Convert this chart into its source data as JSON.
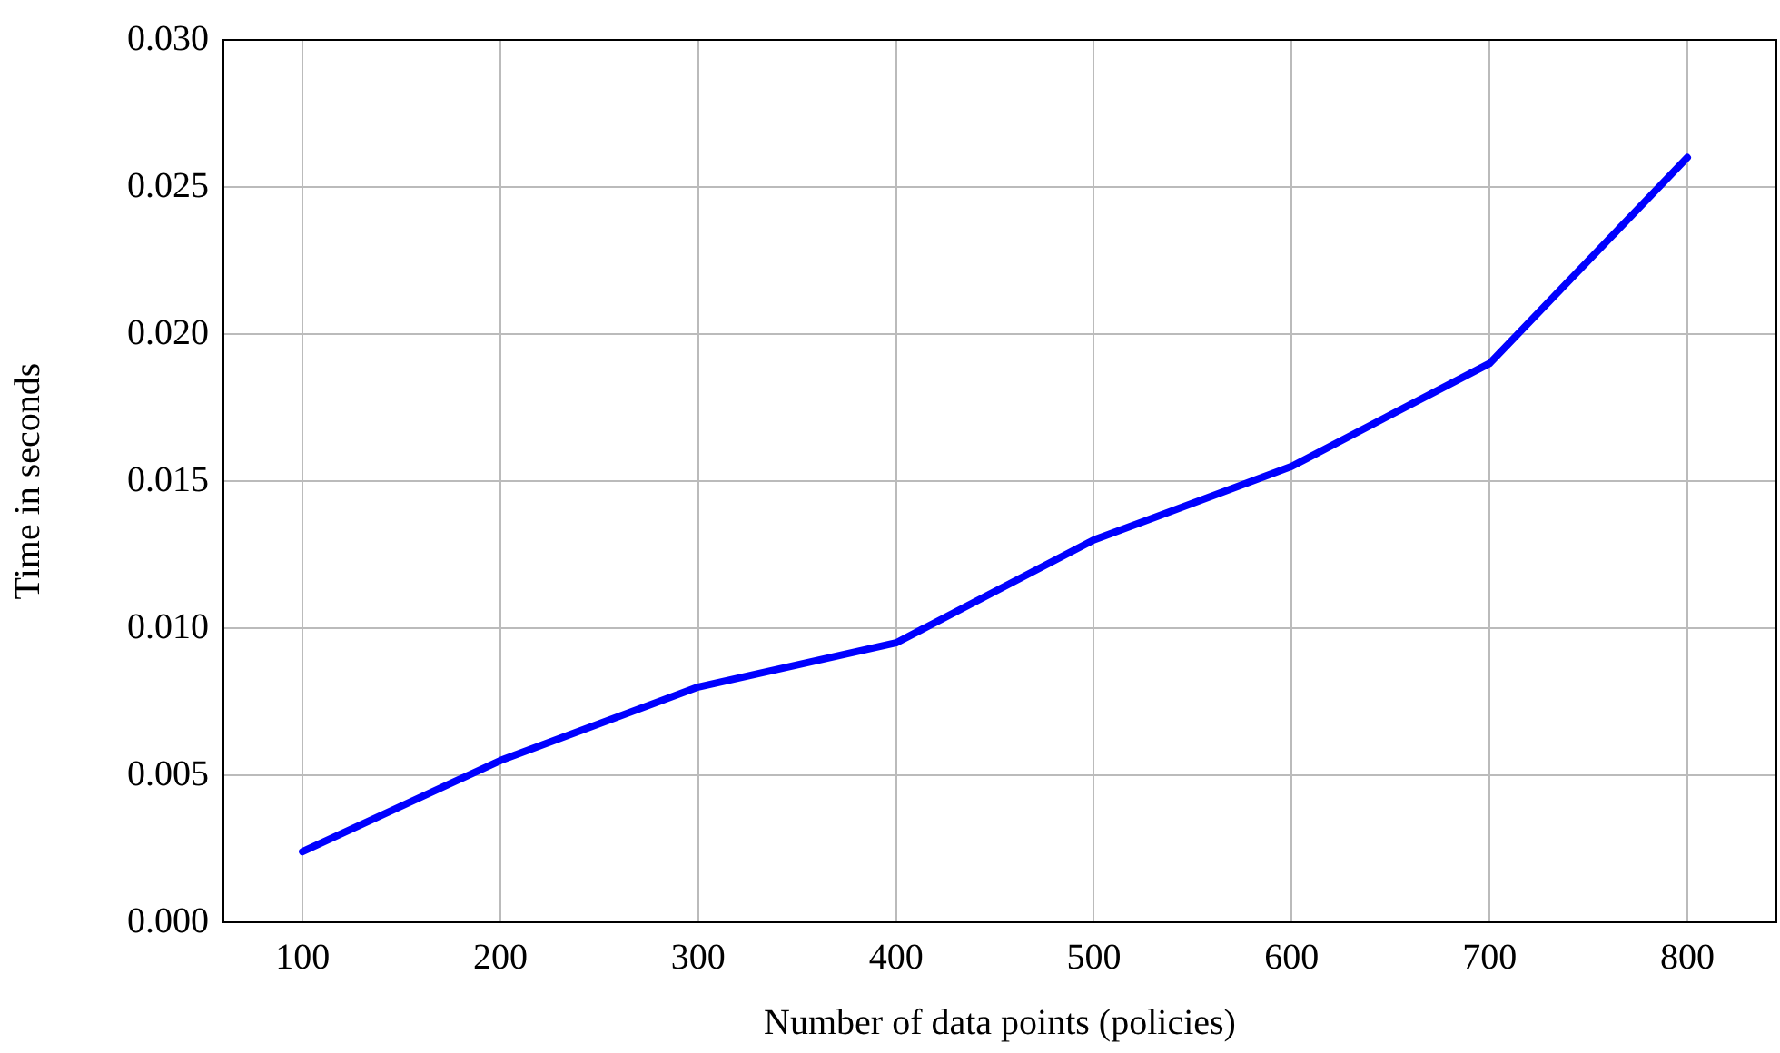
{
  "chart_data": {
    "type": "line",
    "xlabel": "Number of data points (policies)",
    "ylabel": "Time in seconds",
    "x": [
      100,
      200,
      300,
      400,
      500,
      600,
      700,
      800
    ],
    "series": [
      {
        "color": "#0000ff",
        "values": [
          0.0024,
          0.0055,
          0.008,
          0.0095,
          0.013,
          0.0155,
          0.019,
          0.026
        ]
      }
    ],
    "xlim": [
      60,
      845
    ],
    "xticks": [
      100,
      200,
      300,
      400,
      500,
      600,
      700,
      800
    ],
    "ylim": [
      0,
      0.03
    ],
    "yticks": [
      {
        "value": 0,
        "label": "0.000"
      },
      {
        "value": 0.005,
        "label": "0.005"
      },
      {
        "value": 0.01,
        "label": "0.010"
      },
      {
        "value": 0.015,
        "label": "0.015"
      },
      {
        "value": 0.02,
        "label": "0.020"
      },
      {
        "value": 0.025,
        "label": "0.025"
      },
      {
        "value": 0.03,
        "label": "0.030"
      }
    ],
    "grid": true,
    "marker": "none",
    "line_style": "solid",
    "legend": false
  }
}
